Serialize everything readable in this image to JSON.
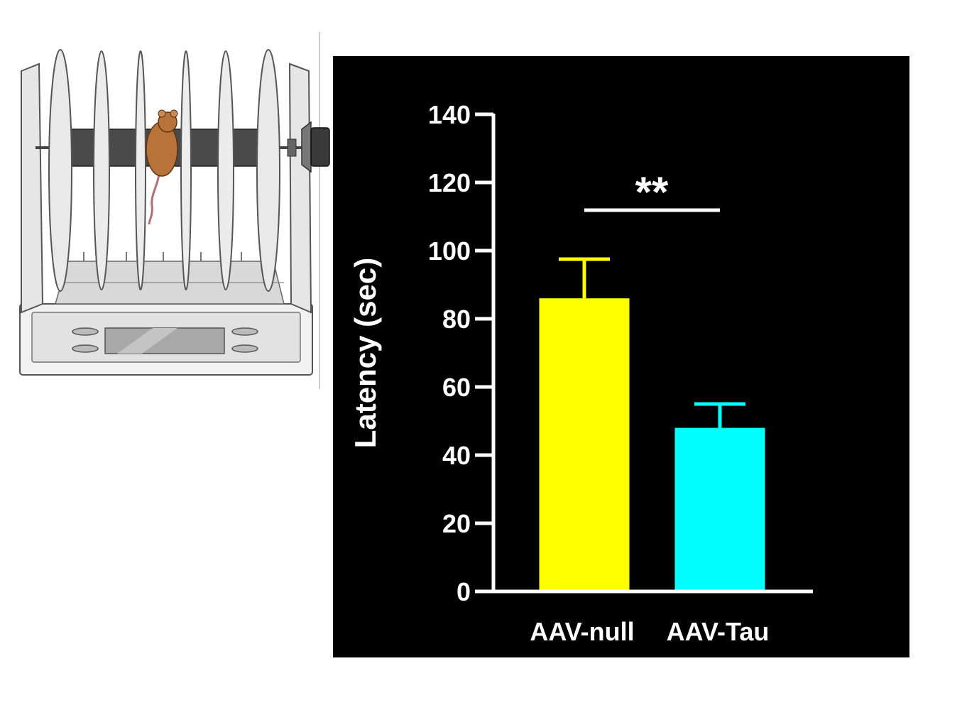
{
  "illustration": {
    "icon": "rotarod-mouse-icon"
  },
  "chart_data": {
    "type": "bar",
    "categories": [
      "AAV-null",
      "AAV-Tau"
    ],
    "values": [
      86,
      48
    ],
    "errors": [
      11.5,
      7
    ],
    "colors": [
      "#ffff00",
      "#00ffff"
    ],
    "ylabel": "Latency (sec)",
    "xlabel": "",
    "ylim": [
      0,
      140
    ],
    "yticks": [
      "0",
      "20",
      "40",
      "60",
      "80",
      "100",
      "120",
      "140"
    ],
    "significance": {
      "label": "**",
      "between": [
        "AAV-null",
        "AAV-Tau"
      ]
    },
    "background": "#000000",
    "grid": false
  }
}
